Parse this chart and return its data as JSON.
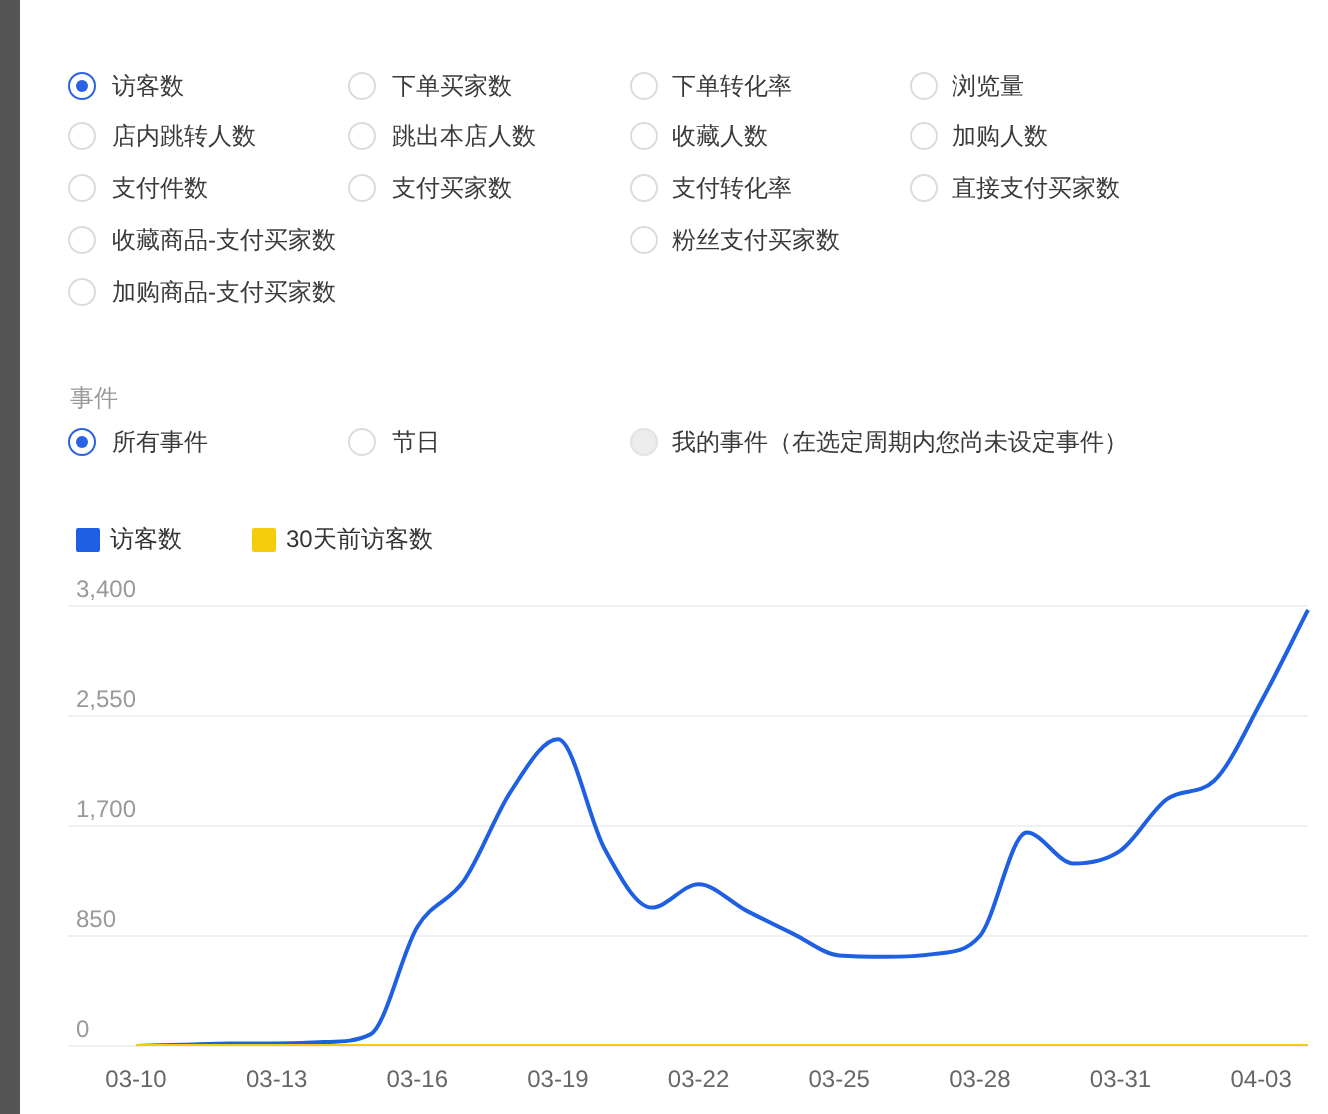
{
  "chart_data": {
    "type": "line",
    "annotations": [
      "访客数",
      "下单买家数",
      "下单转化率",
      "浏览量",
      "店内跳转人数",
      "跳出本店人数",
      "收藏人数",
      "加购人数",
      "支付件数",
      "支付买家数",
      "支付转化率",
      "直接支付买家数",
      "收藏商品-支付买家数",
      "粉丝支付买家数",
      "加购商品-支付买家数",
      "事件",
      "所有事件",
      "节日",
      "我的事件（在选定周期内您尚未设定事件）"
    ],
    "categories": [
      "03-10",
      null,
      null,
      "03-13",
      null,
      null,
      "03-16",
      null,
      null,
      "03-19",
      null,
      null,
      "03-22",
      null,
      null,
      "03-25",
      null,
      null,
      "03-28",
      null,
      null,
      "03-31",
      null,
      null,
      "04-03",
      null
    ],
    "series": [
      {
        "name": "访客数",
        "color": "#1f60e3",
        "values": [
          0,
          10,
          20,
          20,
          30,
          90,
          920,
          1280,
          1970,
          2370,
          1520,
          1070,
          1250,
          1050,
          870,
          700,
          690,
          710,
          850,
          1650,
          1410,
          1510,
          1910,
          2050,
          2660,
          3370
        ]
      },
      {
        "name": "30天前访客数",
        "color": "#f4cc0c",
        "values": [
          0,
          0,
          0,
          0,
          0,
          0,
          0,
          0,
          0,
          0,
          0,
          0,
          0,
          0,
          0,
          0,
          0,
          0,
          0,
          0,
          0,
          0,
          0,
          0,
          0,
          0
        ]
      }
    ],
    "ylim": [
      0,
      3400
    ],
    "yticks": [
      0,
      850,
      {
        "value": 1700,
        "label": "1,700"
      },
      {
        "value": 2550,
        "label": "2,550"
      },
      {
        "value": 3400,
        "label": "3,400"
      }
    ],
    "grid": "y",
    "legend": "top left",
    "marker": "none"
  }
}
